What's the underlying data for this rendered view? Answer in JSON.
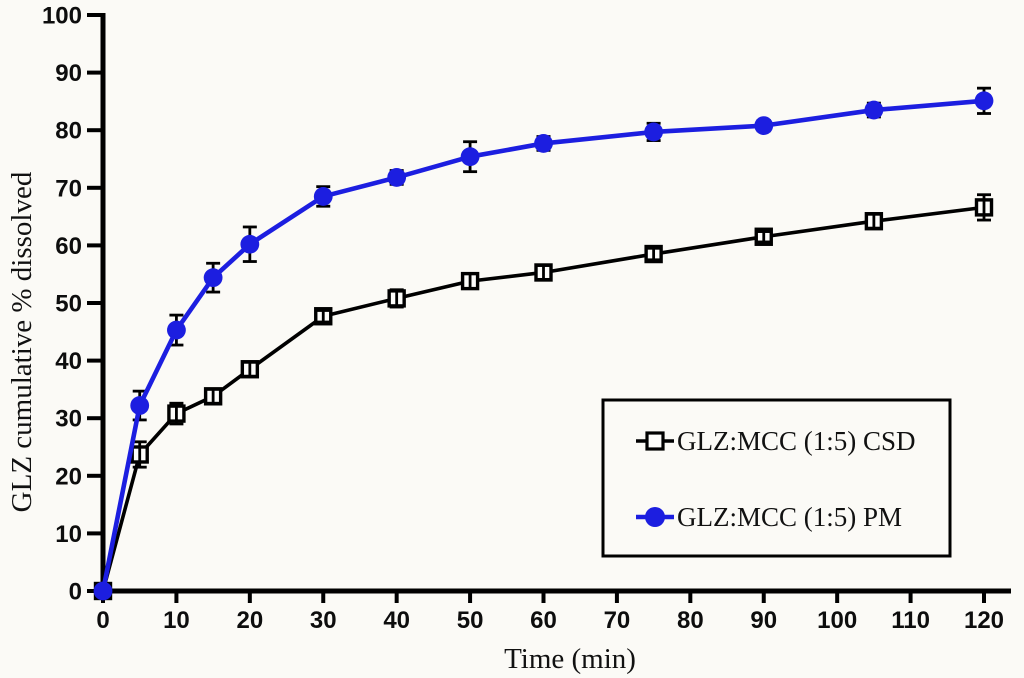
{
  "page": {
    "background_color": "#fbfaf6",
    "figure_kind": "dissolution-profile-line-chart"
  },
  "chart_data": {
    "type": "line",
    "title": "",
    "xlabel": "Time (min)",
    "ylabel": "GLZ cumulative % dissolved",
    "xlim": [
      0,
      120
    ],
    "ylim": [
      0,
      100
    ],
    "x_ticks": [
      0,
      10,
      20,
      30,
      40,
      50,
      60,
      70,
      80,
      90,
      100,
      110,
      120
    ],
    "y_ticks": [
      0,
      10,
      20,
      30,
      40,
      50,
      60,
      70,
      80,
      90,
      100
    ],
    "grid": false,
    "legend_position": "lower-right",
    "error_bar_color": "#000000",
    "axis_color": "#000000",
    "x": [
      0,
      5,
      10,
      15,
      20,
      30,
      40,
      50,
      60,
      75,
      90,
      105,
      120
    ],
    "series": [
      {
        "name": "GLZ:MCC (1:5) CSD",
        "color": "#000000",
        "marker": "open-square",
        "values": [
          0,
          23.7,
          30.8,
          33.8,
          38.5,
          47.7,
          50.8,
          53.8,
          55.3,
          58.5,
          61.5,
          64.2,
          66.6
        ],
        "errors": [
          0,
          2.2,
          1.8,
          1.2,
          1.2,
          1.0,
          1.5,
          1.3,
          1.2,
          1.0,
          0.9,
          1.2,
          2.2
        ]
      },
      {
        "name": "GLZ:MCC (1:5) PM",
        "color": "#1c1ee0",
        "marker": "filled-circle",
        "values": [
          0,
          32.2,
          45.3,
          54.4,
          60.2,
          68.5,
          71.8,
          75.4,
          77.7,
          79.7,
          80.8,
          83.5,
          85.1
        ],
        "errors": [
          0,
          2.5,
          2.6,
          2.5,
          3.0,
          1.7,
          1.2,
          2.6,
          1.2,
          1.5,
          0.9,
          1.2,
          2.2
        ]
      }
    ]
  }
}
